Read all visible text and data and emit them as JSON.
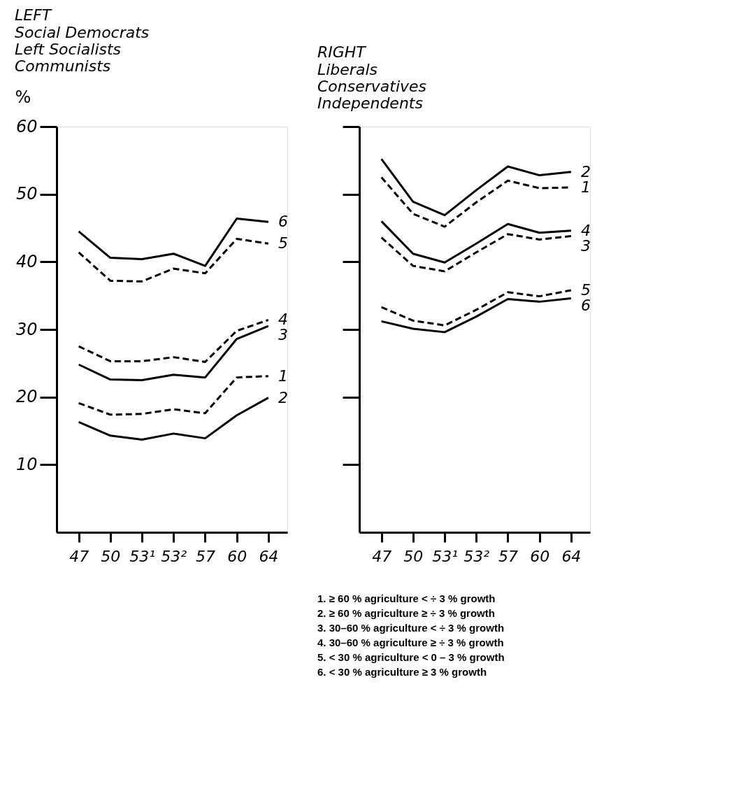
{
  "chart_data": [
    {
      "type": "line",
      "title": "LEFT",
      "subtitle": "Social Democrats\nLeft Socialists\nCommunists",
      "ylabel": "%",
      "categories": [
        "47",
        "50",
        "53¹",
        "53²",
        "57",
        "60",
        "64"
      ],
      "ylim": [
        0,
        60
      ],
      "yticks": [
        10,
        20,
        30,
        40,
        50,
        60
      ],
      "grid": false,
      "legend": false,
      "marker": "none",
      "series": [
        {
          "name": "6",
          "color": "#000000",
          "line_style": "solid",
          "values": [
            44.5,
            40.6,
            40.4,
            41.2,
            39.4,
            46.4,
            45.9
          ]
        },
        {
          "name": "5",
          "color": "#000000",
          "line_style": "dashed",
          "values": [
            41.4,
            37.2,
            37.1,
            39.0,
            38.3,
            43.4,
            42.7
          ]
        },
        {
          "name": "4",
          "color": "#000000",
          "line_style": "dashed",
          "values": [
            27.5,
            25.3,
            25.3,
            25.9,
            25.2,
            29.8,
            31.4
          ]
        },
        {
          "name": "3",
          "color": "#000000",
          "line_style": "solid",
          "values": [
            24.8,
            22.6,
            22.5,
            23.3,
            22.9,
            28.6,
            30.5
          ]
        },
        {
          "name": "1",
          "color": "#000000",
          "line_style": "dashed",
          "values": [
            19.1,
            17.4,
            17.5,
            18.2,
            17.6,
            22.9,
            23.1
          ]
        },
        {
          "name": "2",
          "color": "#000000",
          "line_style": "solid",
          "values": [
            16.3,
            14.3,
            13.7,
            14.6,
            13.9,
            17.3,
            19.9
          ]
        }
      ]
    },
    {
      "type": "line",
      "title": "RIGHT",
      "subtitle": "Liberals\nConservatives\nIndependents",
      "categories": [
        "47",
        "50",
        "53¹",
        "53²",
        "57",
        "60",
        "64"
      ],
      "ylim": [
        0,
        60
      ],
      "yticks": [
        10,
        20,
        30,
        40,
        50,
        60
      ],
      "tick_labels": "x",
      "grid": false,
      "legend": false,
      "marker": "none",
      "series": [
        {
          "name": "2",
          "color": "#000000",
          "line_style": "solid",
          "values": [
            55.2,
            48.9,
            46.9,
            50.6,
            54.1,
            52.8,
            53.3
          ]
        },
        {
          "name": "1",
          "color": "#000000",
          "line_style": "dashed",
          "values": [
            52.5,
            47.1,
            45.2,
            48.8,
            52.0,
            50.9,
            51.0
          ]
        },
        {
          "name": "4",
          "color": "#000000",
          "line_style": "solid",
          "values": [
            46.0,
            41.2,
            39.9,
            42.7,
            45.6,
            44.3,
            44.6
          ]
        },
        {
          "name": "3",
          "color": "#000000",
          "line_style": "dashed",
          "values": [
            43.6,
            39.4,
            38.6,
            41.4,
            44.1,
            43.3,
            43.8
          ]
        },
        {
          "name": "5",
          "color": "#000000",
          "line_style": "dashed",
          "values": [
            33.3,
            31.3,
            30.6,
            32.9,
            35.5,
            34.9,
            35.8
          ]
        },
        {
          "name": "6",
          "color": "#000000",
          "line_style": "solid",
          "values": [
            31.2,
            30.1,
            29.6,
            31.9,
            34.5,
            34.1,
            34.6
          ]
        }
      ],
      "annotations": [
        "1.   ≥  60 % agriculture   <   ÷ 3 % growth",
        "2.   ≥  60 % agriculture   ≥   ÷ 3 % growth",
        "3.   30–60 % agriculture   <   ÷ 3 % growth",
        "4.   30–60 % agriculture   ≥   ÷ 3 % growth",
        "5.   <  30 % agriculture   < 0 – 3 % growth",
        "6.   <  30 % agriculture   ≥     3 % growth"
      ]
    }
  ]
}
